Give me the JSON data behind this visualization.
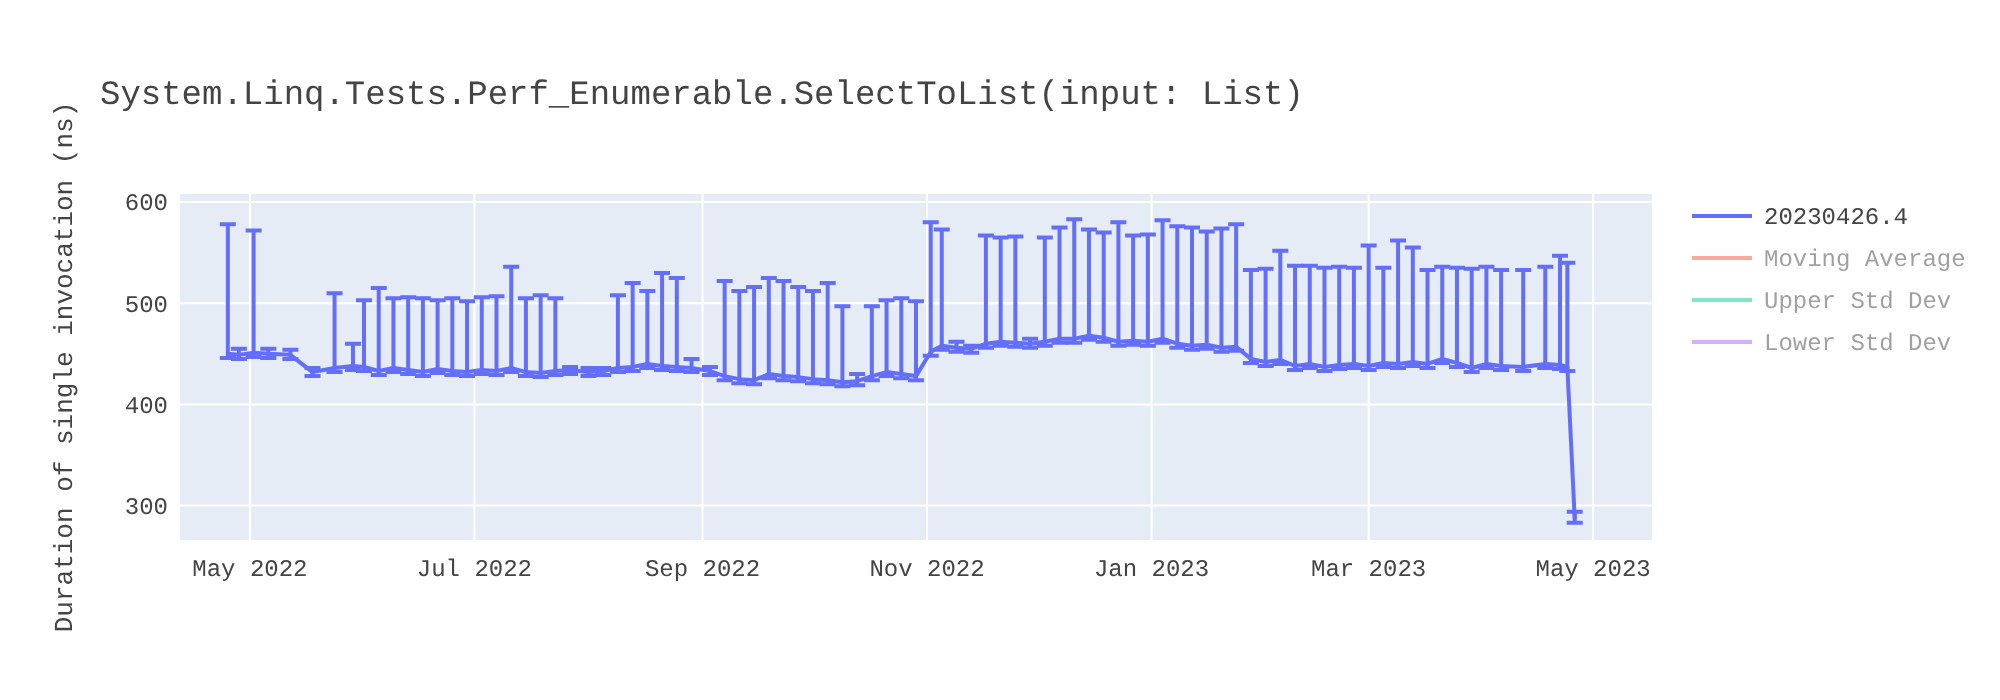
{
  "chart_data": {
    "type": "line",
    "title": "System.Linq.Tests.Perf_Enumerable.SelectToList(input: List)",
    "ylabel": "Duration of single invocation (ns)",
    "xlim": [
      "2022-04-12",
      "2023-05-17"
    ],
    "ylim": [
      266,
      608
    ],
    "yticks": [
      300,
      400,
      500,
      600
    ],
    "xticks": [
      {
        "value": "2022-05-01",
        "label": "May 2022"
      },
      {
        "value": "2022-07-01",
        "label": "Jul 2022"
      },
      {
        "value": "2022-09-01",
        "label": "Sep 2022"
      },
      {
        "value": "2022-11-01",
        "label": "Nov 2022"
      },
      {
        "value": "2023-01-01",
        "label": "Jan 2023"
      },
      {
        "value": "2023-03-01",
        "label": "Mar 2023"
      },
      {
        "value": "2023-05-01",
        "label": "May 2023"
      }
    ],
    "grid": true,
    "legend": "right",
    "marker": "none",
    "line_style": "solid",
    "x": [
      "2022-04-25",
      "2022-04-28",
      "2022-05-02",
      "2022-05-06",
      "2022-05-12",
      "2022-05-18",
      "2022-05-24",
      "2022-05-29",
      "2022-06-01",
      "2022-06-05",
      "2022-06-09",
      "2022-06-13",
      "2022-06-17",
      "2022-06-21",
      "2022-06-25",
      "2022-06-29",
      "2022-07-03",
      "2022-07-07",
      "2022-07-11",
      "2022-07-15",
      "2022-07-19",
      "2022-07-23",
      "2022-07-27",
      "2022-08-01",
      "2022-08-05",
      "2022-08-09",
      "2022-08-13",
      "2022-08-17",
      "2022-08-21",
      "2022-08-25",
      "2022-08-29",
      "2022-09-03",
      "2022-09-07",
      "2022-09-11",
      "2022-09-15",
      "2022-09-19",
      "2022-09-23",
      "2022-09-27",
      "2022-10-01",
      "2022-10-05",
      "2022-10-09",
      "2022-10-13",
      "2022-10-17",
      "2022-10-21",
      "2022-10-25",
      "2022-10-29",
      "2022-11-02",
      "2022-11-05",
      "2022-11-09",
      "2022-11-13",
      "2022-11-17",
      "2022-11-21",
      "2022-11-25",
      "2022-11-29",
      "2022-12-03",
      "2022-12-07",
      "2022-12-11",
      "2022-12-15",
      "2022-12-19",
      "2022-12-23",
      "2022-12-27",
      "2022-12-31",
      "2023-01-04",
      "2023-01-08",
      "2023-01-12",
      "2023-01-16",
      "2023-01-20",
      "2023-01-24",
      "2023-01-28",
      "2023-02-01",
      "2023-02-05",
      "2023-02-09",
      "2023-02-13",
      "2023-02-17",
      "2023-02-21",
      "2023-02-25",
      "2023-03-01",
      "2023-03-05",
      "2023-03-09",
      "2023-03-13",
      "2023-03-17",
      "2023-03-21",
      "2023-03-25",
      "2023-03-29",
      "2023-04-02",
      "2023-04-06",
      "2023-04-12",
      "2023-04-18",
      "2023-04-22",
      "2023-04-24",
      "2023-04-26"
    ],
    "series": [
      {
        "name": "20230426.4",
        "color": "#636efa",
        "values": [
          450,
          449,
          451,
          450,
          449,
          432,
          436,
          438,
          437,
          433,
          436,
          434,
          432,
          435,
          433,
          432,
          434,
          433,
          436,
          432,
          431,
          433,
          434,
          432,
          433,
          436,
          437,
          440,
          438,
          437,
          436,
          433,
          428,
          425,
          424,
          430,
          428,
          427,
          425,
          424,
          422,
          423,
          428,
          432,
          430,
          428,
          452,
          458,
          456,
          455,
          460,
          462,
          461,
          460,
          462,
          465,
          465,
          468,
          466,
          462,
          463,
          462,
          465,
          460,
          458,
          459,
          456,
          457,
          445,
          442,
          444,
          438,
          440,
          437,
          439,
          440,
          438,
          441,
          440,
          442,
          440,
          445,
          441,
          436,
          440,
          438,
          437,
          440,
          439,
          437,
          287
        ],
        "errors": [
          [
            446,
            578
          ],
          [
            445,
            455
          ],
          [
            447,
            572
          ],
          [
            446,
            455
          ],
          [
            445,
            454
          ],
          [
            428,
            436
          ],
          [
            432,
            510
          ],
          [
            434,
            460
          ],
          [
            433,
            503
          ],
          [
            429,
            515
          ],
          [
            432,
            505
          ],
          [
            430,
            506
          ],
          [
            428,
            505
          ],
          [
            431,
            503
          ],
          [
            429,
            505
          ],
          [
            428,
            502
          ],
          [
            430,
            506
          ],
          [
            429,
            507
          ],
          [
            432,
            536
          ],
          [
            428,
            505
          ],
          [
            427,
            508
          ],
          [
            429,
            505
          ],
          [
            430,
            437
          ],
          [
            428,
            436
          ],
          [
            429,
            436
          ],
          [
            432,
            508
          ],
          [
            433,
            520
          ],
          [
            436,
            512
          ],
          [
            434,
            530
          ],
          [
            433,
            525
          ],
          [
            432,
            445
          ],
          [
            429,
            437
          ],
          [
            424,
            522
          ],
          [
            421,
            512
          ],
          [
            420,
            516
          ],
          [
            426,
            525
          ],
          [
            424,
            522
          ],
          [
            423,
            516
          ],
          [
            421,
            512
          ],
          [
            420,
            520
          ],
          [
            418,
            497
          ],
          [
            419,
            430
          ],
          [
            424,
            497
          ],
          [
            428,
            503
          ],
          [
            426,
            505
          ],
          [
            424,
            502
          ],
          [
            448,
            580
          ],
          [
            454,
            573
          ],
          [
            452,
            462
          ],
          [
            451,
            458
          ],
          [
            456,
            567
          ],
          [
            458,
            565
          ],
          [
            457,
            566
          ],
          [
            456,
            465
          ],
          [
            458,
            565
          ],
          [
            461,
            575
          ],
          [
            461,
            583
          ],
          [
            464,
            573
          ],
          [
            462,
            570
          ],
          [
            458,
            580
          ],
          [
            459,
            567
          ],
          [
            458,
            568
          ],
          [
            461,
            582
          ],
          [
            456,
            576
          ],
          [
            454,
            575
          ],
          [
            455,
            571
          ],
          [
            452,
            574
          ],
          [
            453,
            578
          ],
          [
            441,
            533
          ],
          [
            438,
            534
          ],
          [
            440,
            552
          ],
          [
            434,
            537
          ],
          [
            436,
            537
          ],
          [
            433,
            535
          ],
          [
            435,
            536
          ],
          [
            436,
            535
          ],
          [
            434,
            557
          ],
          [
            437,
            535
          ],
          [
            436,
            562
          ],
          [
            438,
            555
          ],
          [
            436,
            533
          ],
          [
            441,
            536
          ],
          [
            437,
            535
          ],
          [
            432,
            534
          ],
          [
            436,
            536
          ],
          [
            434,
            533
          ],
          [
            433,
            533
          ],
          [
            436,
            536
          ],
          [
            435,
            547
          ],
          [
            433,
            540
          ],
          [
            283,
            294
          ]
        ]
      },
      {
        "name": "Moving Average",
        "color": "#ef553b",
        "values": [
          null,
          null,
          null,
          null,
          null,
          null,
          null,
          null,
          null,
          null,
          null,
          null,
          null,
          null,
          null,
          null,
          null,
          null,
          null,
          null,
          null,
          null,
          null,
          null,
          null,
          null,
          null,
          null,
          null,
          null,
          null,
          null,
          null,
          null,
          null,
          null,
          null,
          null,
          null,
          null,
          null,
          null,
          null,
          null,
          null,
          null,
          null,
          null,
          null,
          null,
          null,
          null,
          null,
          null,
          null,
          null,
          null,
          null,
          null,
          null,
          null,
          null,
          null,
          null,
          null,
          null,
          null,
          null,
          null,
          null,
          null,
          null,
          null,
          null,
          null,
          null,
          null,
          null,
          null,
          null,
          null,
          null,
          null,
          null,
          null,
          null,
          null,
          null,
          null,
          null,
          null
        ]
      },
      {
        "name": "Upper Std Dev",
        "color": "#00cc96",
        "values": [
          null,
          null,
          null,
          null,
          null,
          null,
          null,
          null,
          null,
          null,
          null,
          null,
          null,
          null,
          null,
          null,
          null,
          null,
          null,
          null,
          null,
          null,
          null,
          null,
          null,
          null,
          null,
          null,
          null,
          null,
          null,
          null,
          null,
          null,
          null,
          null,
          null,
          null,
          null,
          null,
          null,
          null,
          null,
          null,
          null,
          null,
          null,
          null,
          null,
          null,
          null,
          null,
          null,
          null,
          null,
          null,
          null,
          null,
          null,
          null,
          null,
          null,
          null,
          null,
          null,
          null,
          null,
          null,
          null,
          null,
          null,
          null,
          null,
          null,
          null,
          null,
          null,
          null,
          null,
          null,
          null,
          null,
          null,
          null,
          null,
          null,
          null,
          null,
          null,
          null,
          null
        ]
      },
      {
        "name": "Lower Std Dev",
        "color": "#ab63fa",
        "values": [
          null,
          null,
          null,
          null,
          null,
          null,
          null,
          null,
          null,
          null,
          null,
          null,
          null,
          null,
          null,
          null,
          null,
          null,
          null,
          null,
          null,
          null,
          null,
          null,
          null,
          null,
          null,
          null,
          null,
          null,
          null,
          null,
          null,
          null,
          null,
          null,
          null,
          null,
          null,
          null,
          null,
          null,
          null,
          null,
          null,
          null,
          null,
          null,
          null,
          null,
          null,
          null,
          null,
          null,
          null,
          null,
          null,
          null,
          null,
          null,
          null,
          null,
          null,
          null,
          null,
          null,
          null,
          null,
          null,
          null,
          null,
          null,
          null,
          null,
          null,
          null,
          null,
          null,
          null,
          null,
          null,
          null,
          null,
          null,
          null,
          null,
          null,
          null,
          null,
          null,
          null
        ]
      }
    ]
  }
}
